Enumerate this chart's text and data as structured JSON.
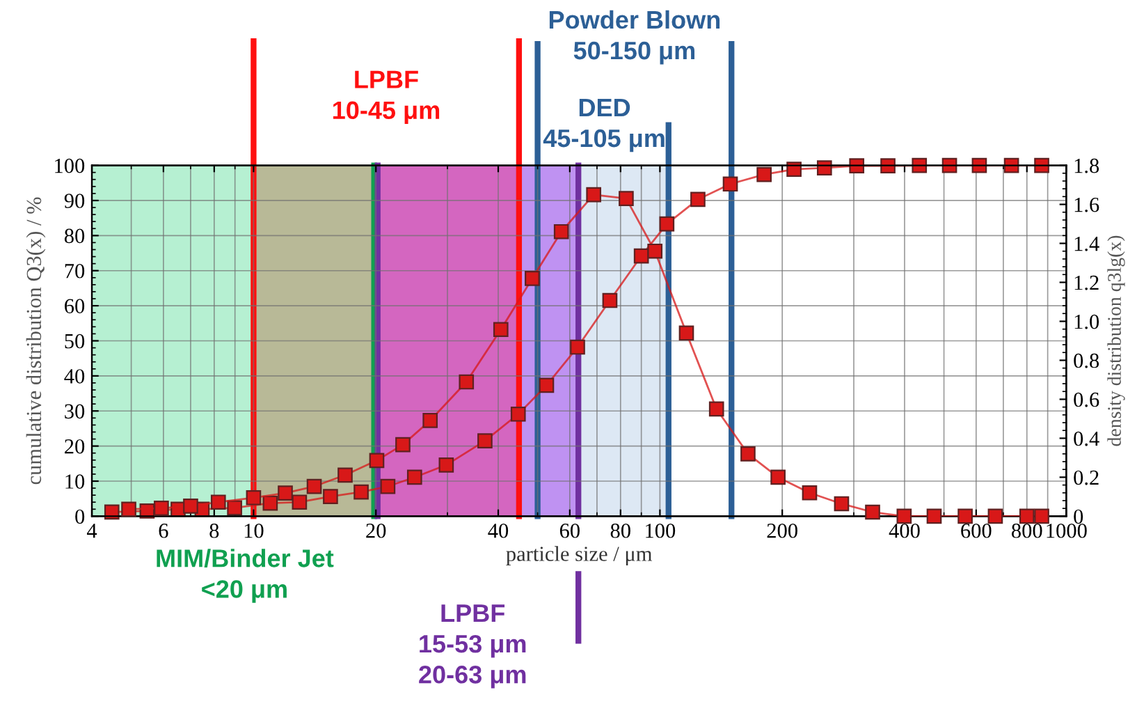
{
  "chart_data": {
    "type": "line",
    "xlabel": "particle size / μm",
    "ylabel": "cumulative distribution Q3(x) / %",
    "y2label": "density distribution q3lg(x)",
    "log": "x",
    "grid": true,
    "marker": "square",
    "line_style": "solid",
    "legend": false,
    "xlim": [
      4,
      1000
    ],
    "xticks": [
      4,
      6,
      8,
      10,
      20,
      40,
      60,
      80,
      100,
      200,
      400,
      600,
      800,
      1000
    ],
    "ylim": [
      0,
      100
    ],
    "yticks": [
      0,
      10,
      20,
      30,
      40,
      50,
      60,
      70,
      80,
      90,
      100
    ],
    "y2lim": [
      0,
      1.8
    ],
    "y2ticks": [
      0,
      {
        "value": 0.2,
        "label": "0.2"
      },
      {
        "value": 0.4,
        "label": "0.4"
      },
      {
        "value": 0.6,
        "label": "0.6"
      },
      {
        "value": 0.8,
        "label": "0.8"
      },
      {
        "value": 1.0,
        "label": "1.0"
      },
      {
        "value": 1.2,
        "label": "1.2"
      },
      {
        "value": 1.4,
        "label": "1.4"
      },
      {
        "value": 1.6,
        "label": "1.6"
      },
      {
        "value": 1.8,
        "label": "1.8"
      }
    ],
    "series": [
      {
        "color": "#d81818",
        "x": [
          4.48,
          5.47,
          6.52,
          7.47,
          8.98,
          10.99,
          12.97,
          15.46,
          18.4,
          21.4,
          24.9,
          29.8,
          37.1,
          44.8,
          52.6,
          62.7,
          75.3,
          90.0,
          104,
          124,
          149,
          180.5,
          213.8,
          254,
          305,
          364,
          435,
          516,
          611,
          733,
          870
        ],
        "values": [
          1.2,
          1.5,
          2.0,
          2.0,
          2.4,
          3.7,
          4.0,
          5.6,
          6.9,
          8.5,
          11.1,
          14.6,
          21.5,
          29.1,
          37.3,
          48.2,
          61.5,
          74.2,
          83.3,
          90.3,
          94.7,
          97.4,
          98.9,
          99.3,
          99.9,
          99.9,
          100,
          100,
          100,
          100,
          100
        ]
      },
      {
        "color": "#d81818",
        "axis": "y2",
        "x": [
          4.93,
          5.93,
          7.0,
          8.19,
          10.0,
          11.97,
          14.1,
          16.8,
          20.1,
          23.3,
          27.2,
          33.4,
          40.6,
          48.5,
          57.2,
          68.7,
          82.6,
          97.2,
          116.2,
          137.8,
          164.7,
          195.3,
          233.5,
          279.9,
          333.7,
          399,
          473,
          564,
          669,
          800,
          870
        ],
        "values": [
          0.036,
          0.041,
          0.052,
          0.072,
          0.095,
          0.119,
          0.153,
          0.211,
          0.286,
          0.367,
          0.491,
          0.689,
          0.958,
          1.22,
          1.46,
          1.65,
          1.63,
          1.36,
          0.94,
          0.55,
          0.32,
          0.2,
          0.12,
          0.064,
          0.021,
          0,
          0,
          0,
          0,
          0,
          0
        ]
      }
    ],
    "bands": [
      {
        "axis": "x",
        "from": 4,
        "to": 10,
        "color": "#b6f0d2"
      },
      {
        "axis": "x",
        "from": 10,
        "to": 20,
        "color": "#b8b997"
      },
      {
        "axis": "x",
        "from": 20,
        "to": 45,
        "color": "#d466c0"
      },
      {
        "axis": "x",
        "from": 45,
        "to": 63,
        "color": "#bf92f2"
      },
      {
        "axis": "x",
        "from": 63,
        "to": 105,
        "color": "#dde8f4"
      }
    ],
    "ref_lines": [
      {
        "axis": "x",
        "value": 10,
        "color": "#ff1010",
        "label": "LPBF\n10-45 μm"
      },
      {
        "axis": "x",
        "value": 45,
        "color": "#ff1010"
      },
      {
        "axis": "x",
        "value": 19.8,
        "color": "#10a050",
        "label": "MIM/Binder Jet\n<20 μm"
      },
      {
        "axis": "x",
        "value": 20.2,
        "color": "#7030a0"
      },
      {
        "axis": "x",
        "value": 63,
        "color": "#7030a0",
        "label": "LPBF\n15-53 μm\n20-63 μm"
      },
      {
        "axis": "x",
        "value": 50,
        "color": "#2c5f96",
        "label": "Powder Blown\n50-150 μm"
      },
      {
        "axis": "x",
        "value": 105,
        "color": "#2c5f96",
        "label": "DED\n45-105 μm"
      },
      {
        "axis": "x",
        "value": 150,
        "color": "#2c5f96"
      }
    ]
  }
}
